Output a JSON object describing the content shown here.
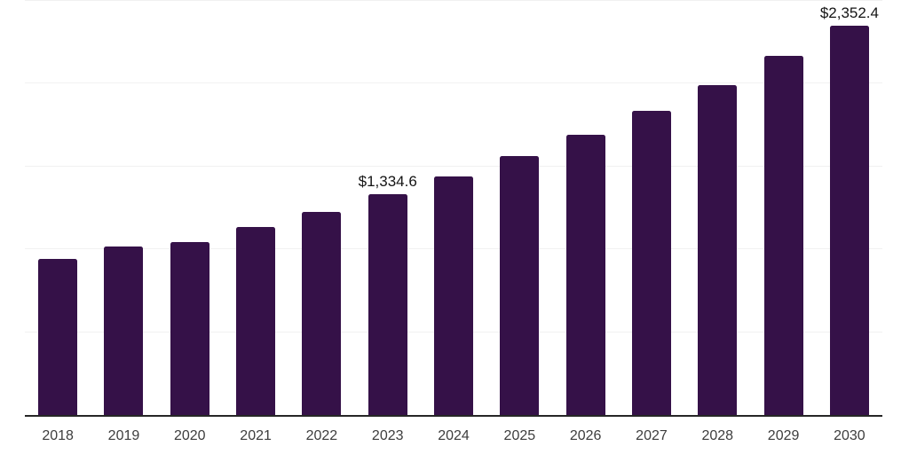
{
  "chart_data": {
    "type": "bar",
    "title": "",
    "xlabel": "",
    "ylabel": "",
    "categories": [
      "2018",
      "2019",
      "2020",
      "2021",
      "2022",
      "2023",
      "2024",
      "2025",
      "2026",
      "2027",
      "2028",
      "2029",
      "2030"
    ],
    "values": [
      940,
      1016,
      1042,
      1135,
      1225,
      1334.6,
      1441,
      1563,
      1690,
      1836,
      1993,
      2166,
      2352.4
    ],
    "value_labels": [
      "",
      "",
      "",
      "",
      "",
      "$1,334.6",
      "",
      "",
      "",
      "",
      "",
      "",
      "$2,352.4"
    ],
    "ylim": [
      0,
      2500
    ],
    "gridline_step": 500,
    "grid": true,
    "legend": false,
    "y_axis_tick_labels_visible": false,
    "colors": {
      "bar": "#351148",
      "axis_line": "#262626",
      "gridline": "#f1f1f1",
      "tick_label": "#3d3d3d",
      "value_label": "#141414",
      "background": "#ffffff"
    }
  }
}
